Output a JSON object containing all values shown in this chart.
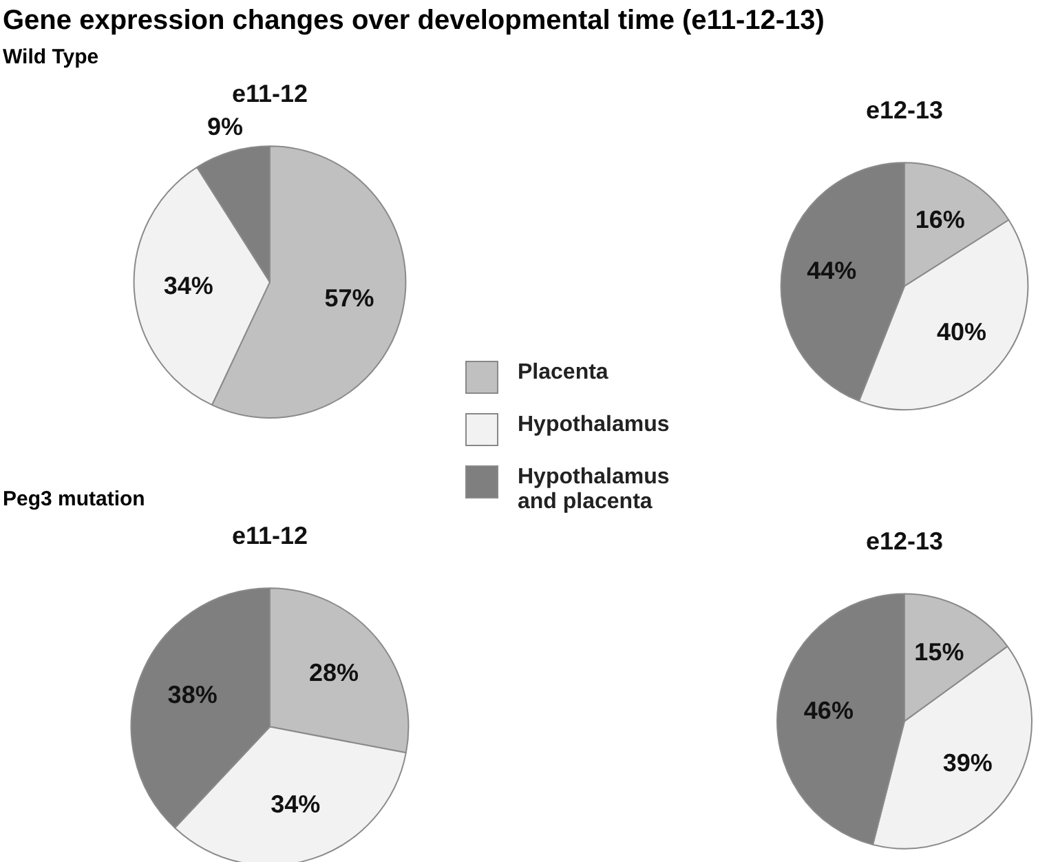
{
  "chart_data": [
    {
      "type": "pie",
      "title": "e11-12",
      "annotations": [
        "Gene expression changes over developmental time (e11-12-13)",
        "Wild Type"
      ],
      "categories": [
        null,
        null,
        null
      ],
      "values": [
        57,
        34,
        9
      ],
      "value_labels": [
        "57%",
        "34%",
        "9%"
      ],
      "colors": [
        "#c0c0c0",
        "#f2f2f2",
        "#7f7f7f"
      ]
    },
    {
      "type": "pie",
      "title": "e12-13",
      "legend": "left",
      "categories": [
        "Placenta",
        "Hypothalamus",
        "Hypothalamus and placenta"
      ],
      "values": [
        16,
        40,
        44
      ],
      "value_labels": [
        "16%",
        "40%",
        "44%"
      ],
      "colors": [
        "#c0c0c0",
        "#f2f2f2",
        "#7f7f7f"
      ]
    },
    {
      "type": "pie",
      "title": "e11-12",
      "annotations": [
        "Peg3 mutation"
      ],
      "categories": [
        null,
        null,
        null
      ],
      "values": [
        28,
        34,
        38
      ],
      "value_labels": [
        "28%",
        "34%",
        "38%"
      ],
      "colors": [
        "#c0c0c0",
        "#f2f2f2",
        "#7f7f7f"
      ]
    },
    {
      "type": "pie",
      "title": "e12-13",
      "categories": [
        null,
        null,
        null
      ],
      "values": [
        15,
        39,
        46
      ],
      "value_labels": [
        "15%",
        "39%",
        "46%"
      ],
      "colors": [
        "#c0c0c0",
        "#f2f2f2",
        "#7f7f7f"
      ]
    }
  ]
}
